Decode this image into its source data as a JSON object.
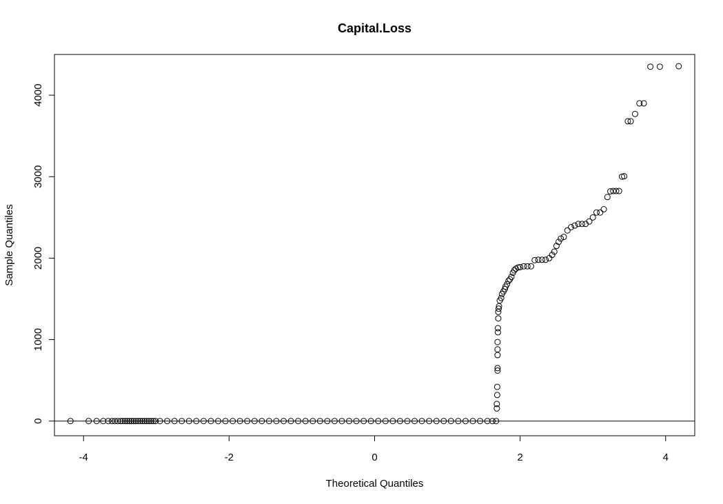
{
  "chart_data": {
    "type": "scatter",
    "title": "Capital.Loss",
    "xlabel": "Theoretical Quantiles",
    "ylabel": "Sample Quantiles",
    "xlim": [
      -4.4,
      4.4
    ],
    "ylim": [
      -180,
      4500
    ],
    "xticks": [
      -4,
      -2,
      0,
      2,
      4
    ],
    "xtick_labels": [
      "-4",
      "-2",
      "0",
      "2",
      "4"
    ],
    "yticks": [
      0,
      1000,
      2000,
      3000,
      4000
    ],
    "ytick_labels": [
      "0",
      "1000",
      "2000",
      "3000",
      "4000"
    ],
    "reference_line_y": 0,
    "grid": false,
    "series": [
      {
        "points": [
          [
            -4.18,
            0
          ],
          [
            -3.93,
            0
          ],
          [
            -3.82,
            0
          ],
          [
            -3.73,
            0
          ],
          [
            -3.66,
            0
          ],
          [
            -3.61,
            0
          ],
          [
            -3.57,
            0
          ],
          [
            -3.53,
            0
          ],
          [
            -3.49,
            0
          ],
          [
            -3.46,
            0
          ],
          [
            -3.43,
            0
          ],
          [
            -3.4,
            0
          ],
          [
            -3.37,
            0
          ],
          [
            -3.34,
            0
          ],
          [
            -3.31,
            0
          ],
          [
            -3.28,
            0
          ],
          [
            -3.25,
            0
          ],
          [
            -3.22,
            0
          ],
          [
            -3.19,
            0
          ],
          [
            -3.16,
            0
          ],
          [
            -3.13,
            0
          ],
          [
            -3.1,
            0
          ],
          [
            -3.07,
            0
          ],
          [
            -3.04,
            0
          ],
          [
            -3.01,
            0
          ],
          [
            -2.95,
            0
          ],
          [
            -2.85,
            0
          ],
          [
            -2.75,
            0
          ],
          [
            -2.65,
            0
          ],
          [
            -2.55,
            0
          ],
          [
            -2.45,
            0
          ],
          [
            -2.35,
            0
          ],
          [
            -2.25,
            0
          ],
          [
            -2.15,
            0
          ],
          [
            -2.05,
            0
          ],
          [
            -1.95,
            0
          ],
          [
            -1.85,
            0
          ],
          [
            -1.75,
            0
          ],
          [
            -1.65,
            0
          ],
          [
            -1.55,
            0
          ],
          [
            -1.45,
            0
          ],
          [
            -1.35,
            0
          ],
          [
            -1.25,
            0
          ],
          [
            -1.15,
            0
          ],
          [
            -1.05,
            0
          ],
          [
            -0.95,
            0
          ],
          [
            -0.85,
            0
          ],
          [
            -0.75,
            0
          ],
          [
            -0.65,
            0
          ],
          [
            -0.55,
            0
          ],
          [
            -0.45,
            0
          ],
          [
            -0.35,
            0
          ],
          [
            -0.25,
            0
          ],
          [
            -0.15,
            0
          ],
          [
            -0.05,
            0
          ],
          [
            0.05,
            0
          ],
          [
            0.15,
            0
          ],
          [
            0.25,
            0
          ],
          [
            0.35,
            0
          ],
          [
            0.45,
            0
          ],
          [
            0.55,
            0
          ],
          [
            0.65,
            0
          ],
          [
            0.75,
            0
          ],
          [
            0.85,
            0
          ],
          [
            0.95,
            0
          ],
          [
            1.05,
            0
          ],
          [
            1.15,
            0
          ],
          [
            1.25,
            0
          ],
          [
            1.35,
            0
          ],
          [
            1.45,
            0
          ],
          [
            1.55,
            0
          ],
          [
            1.62,
            0
          ],
          [
            1.67,
            0
          ],
          [
            1.68,
            155
          ],
          [
            1.68,
            210
          ],
          [
            1.685,
            320
          ],
          [
            1.685,
            420
          ],
          [
            1.69,
            620
          ],
          [
            1.69,
            650
          ],
          [
            1.69,
            810
          ],
          [
            1.69,
            880
          ],
          [
            1.69,
            970
          ],
          [
            1.695,
            1090
          ],
          [
            1.695,
            1140
          ],
          [
            1.7,
            1260
          ],
          [
            1.7,
            1340
          ],
          [
            1.705,
            1380
          ],
          [
            1.71,
            1410
          ],
          [
            1.72,
            1480
          ],
          [
            1.74,
            1510
          ],
          [
            1.75,
            1560
          ],
          [
            1.77,
            1590
          ],
          [
            1.79,
            1620
          ],
          [
            1.8,
            1650
          ],
          [
            1.82,
            1680
          ],
          [
            1.84,
            1720
          ],
          [
            1.86,
            1740
          ],
          [
            1.88,
            1770
          ],
          [
            1.9,
            1820
          ],
          [
            1.92,
            1850
          ],
          [
            1.94,
            1870
          ],
          [
            1.97,
            1885
          ],
          [
            2.0,
            1890
          ],
          [
            2.05,
            1900
          ],
          [
            2.1,
            1900
          ],
          [
            2.15,
            1900
          ],
          [
            2.2,
            1975
          ],
          [
            2.25,
            1980
          ],
          [
            2.3,
            1980
          ],
          [
            2.35,
            1980
          ],
          [
            2.4,
            2000
          ],
          [
            2.44,
            2040
          ],
          [
            2.47,
            2080
          ],
          [
            2.5,
            2150
          ],
          [
            2.53,
            2200
          ],
          [
            2.56,
            2240
          ],
          [
            2.6,
            2260
          ],
          [
            2.65,
            2340
          ],
          [
            2.7,
            2380
          ],
          [
            2.75,
            2400
          ],
          [
            2.8,
            2420
          ],
          [
            2.85,
            2420
          ],
          [
            2.9,
            2420
          ],
          [
            2.95,
            2450
          ],
          [
            3.0,
            2500
          ],
          [
            3.05,
            2560
          ],
          [
            3.1,
            2560
          ],
          [
            3.15,
            2600
          ],
          [
            3.2,
            2750
          ],
          [
            3.24,
            2820
          ],
          [
            3.28,
            2824
          ],
          [
            3.32,
            2824
          ],
          [
            3.36,
            2824
          ],
          [
            3.4,
            3000
          ],
          [
            3.43,
            3005
          ],
          [
            3.48,
            3680
          ],
          [
            3.52,
            3680
          ],
          [
            3.58,
            3770
          ],
          [
            3.64,
            3900
          ],
          [
            3.7,
            3900
          ],
          [
            3.79,
            4350
          ],
          [
            3.92,
            4350
          ],
          [
            4.18,
            4356
          ]
        ]
      }
    ]
  }
}
